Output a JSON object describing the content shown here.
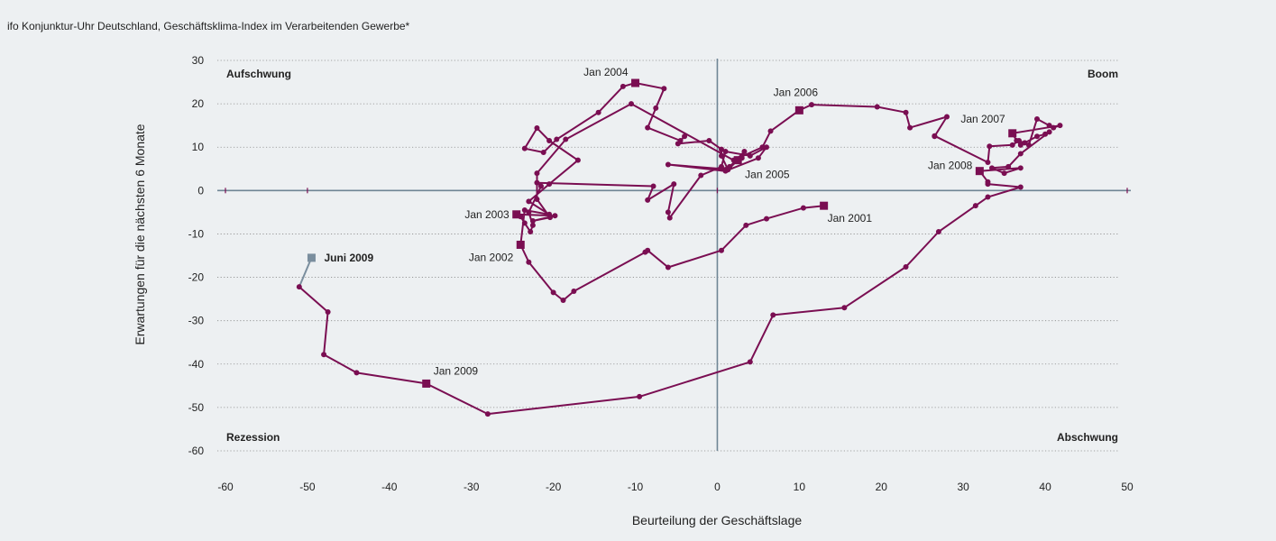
{
  "title": "ifo Konjunktur-Uhr Deutschland, Geschäftsklima-Index im Verarbeitenden Gewerbe*",
  "colors": {
    "series": "#7a0e52",
    "latest": "#7a8e9e",
    "axis": "#6f8595",
    "grid": "#8a8a8a"
  },
  "chart_data": {
    "type": "scatter",
    "title": "ifo Konjunktur-Uhr Deutschland, Geschäftsklima-Index im Verarbeitenden Gewerbe*",
    "xlabel": "Beurteilung der Geschäftslage",
    "ylabel": "Erwartungen für die nächsten 6 Monate",
    "xlim": [
      -60,
      50
    ],
    "ylim": [
      -60,
      30
    ],
    "xticks": [
      "-60",
      "-50",
      "-40",
      "-30",
      "-20",
      "-10",
      "0",
      "10",
      "20",
      "30",
      "40",
      "50"
    ],
    "yticks": [
      "30",
      "20",
      "10",
      "0",
      "-10",
      "-20",
      "-30",
      "-40",
      "-50",
      "-60"
    ],
    "grid": "horizontal dotted",
    "quadrants": {
      "top_left": "Aufschwung",
      "top_right": "Boom",
      "bottom_left": "Rezession",
      "bottom_right": "Abschwung"
    },
    "series": [
      {
        "points": [
          [
            13,
            -3.5
          ],
          [
            10.5,
            -4
          ],
          [
            6,
            -6.5
          ],
          [
            3.5,
            -8
          ],
          [
            0.5,
            -13.8
          ],
          [
            -6,
            -17.7
          ],
          [
            -8.5,
            -13.8
          ],
          [
            -8.8,
            -14.2
          ],
          [
            -17.5,
            -23.2
          ],
          [
            -18.8,
            -25.3
          ],
          [
            -20,
            -23.5
          ],
          [
            -23,
            -16.5
          ],
          [
            -24,
            -12.5
          ],
          [
            -23.5,
            -4.5
          ],
          [
            -20.5,
            -5.5
          ],
          [
            -23,
            -2.5
          ],
          [
            -20.5,
            1.5
          ],
          [
            -17,
            7
          ],
          [
            -20.5,
            11.5
          ],
          [
            -22,
            14.4
          ],
          [
            -23.5,
            9.7
          ],
          [
            -21.2,
            8.8
          ],
          [
            -19.6,
            11.8
          ],
          [
            -14.5,
            18
          ],
          [
            -11.5,
            24
          ],
          [
            -10,
            24.8
          ],
          [
            -6.5,
            23.5
          ],
          [
            -7.5,
            19
          ],
          [
            -8.5,
            14.5
          ],
          [
            -4.5,
            11.5
          ],
          [
            -4,
            12.5
          ],
          [
            -4.8,
            10.8
          ],
          [
            -1,
            11.5
          ],
          [
            0.5,
            9.5
          ],
          [
            0.5,
            8
          ],
          [
            1.3,
            4.8
          ],
          [
            2.5,
            7
          ],
          [
            3,
            7.5
          ],
          [
            3.3,
            9
          ],
          [
            1.5,
            5.5
          ],
          [
            0.5,
            5
          ],
          [
            -6,
            6
          ],
          [
            1,
            4.5
          ],
          [
            5,
            7.5
          ],
          [
            6,
            10
          ],
          [
            4,
            8
          ],
          [
            1,
            9
          ],
          [
            0.5,
            5.5
          ],
          [
            -2,
            3.5
          ],
          [
            -5.8,
            -6.3
          ],
          [
            -6,
            -5
          ],
          [
            -5.3,
            1.5
          ],
          [
            -8.5,
            -2.2
          ],
          [
            -7.8,
            1
          ],
          [
            -22,
            1.8
          ],
          [
            -21.5,
            1
          ],
          [
            -23,
            -5
          ],
          [
            -22.5,
            -8
          ],
          [
            -22.8,
            -9.5
          ],
          [
            -23.5,
            -7.5
          ],
          [
            -24,
            -6
          ],
          [
            -24.5,
            -5.5
          ],
          [
            -19.8,
            -5.8
          ],
          [
            -22.5,
            -7
          ],
          [
            -20.4,
            -6.2
          ],
          [
            -22,
            -2
          ],
          [
            -22,
            4
          ],
          [
            -18.5,
            11.8
          ],
          [
            -10.5,
            20
          ],
          [
            2,
            7
          ],
          [
            5.5,
            10
          ],
          [
            6.5,
            13.7
          ],
          [
            10,
            18.5
          ],
          [
            11.5,
            19.8
          ],
          [
            19.5,
            19.3
          ],
          [
            23,
            18
          ],
          [
            23.5,
            14.5
          ],
          [
            28,
            17
          ],
          [
            26.5,
            12.5
          ],
          [
            26.5,
            12.6
          ],
          [
            33,
            6.5
          ],
          [
            33.2,
            10.2
          ],
          [
            36,
            10.5
          ],
          [
            36.8,
            11.5
          ],
          [
            38,
            10.5
          ],
          [
            39,
            16.5
          ],
          [
            40.5,
            15
          ],
          [
            41,
            14.5
          ],
          [
            41.8,
            15
          ],
          [
            36,
            13.2
          ],
          [
            36.5,
            11.5
          ],
          [
            37,
            10.5
          ],
          [
            37.5,
            11
          ],
          [
            39,
            12.5
          ],
          [
            40,
            13
          ],
          [
            40.5,
            13.5
          ],
          [
            37,
            8.5
          ],
          [
            35.5,
            5.5
          ],
          [
            33.5,
            5.2
          ],
          [
            35,
            4
          ],
          [
            37,
            5.2
          ],
          [
            32,
            4.5
          ],
          [
            33,
            2
          ],
          [
            33,
            1.5
          ],
          [
            37,
            0.8
          ],
          [
            33,
            -1.5
          ],
          [
            31.5,
            -3.5
          ],
          [
            27,
            -9.5
          ],
          [
            23,
            -17.6
          ],
          [
            15.5,
            -27
          ],
          [
            6.8,
            -28.7
          ],
          [
            4,
            -39.5
          ],
          [
            -9.5,
            -47.5
          ],
          [
            -28,
            -51.5
          ],
          [
            -35.5,
            -44.5
          ],
          [
            -44,
            -42
          ],
          [
            -48,
            -37.8
          ],
          [
            -47.5,
            -28
          ],
          [
            -51,
            -22.2
          ]
        ],
        "latest": [
          [
            -51,
            -22.2
          ],
          [
            -49.5,
            -15.5
          ]
        ]
      }
    ],
    "labeled_points": [
      {
        "label": "Jan 2001",
        "x": 13,
        "y": -3.5
      },
      {
        "label": "Jan 2002",
        "x": -24,
        "y": -12.5
      },
      {
        "label": "Jan 2003",
        "x": -24.5,
        "y": -5.5
      },
      {
        "label": "Jan 2004",
        "x": -10,
        "y": 24.8
      },
      {
        "label": "Jan 2005",
        "x": 2.5,
        "y": 7
      },
      {
        "label": "Jan 2006",
        "x": 10,
        "y": 18.5
      },
      {
        "label": "Jan 2007",
        "x": 36,
        "y": 13.2
      },
      {
        "label": "Jan 2008",
        "x": 32,
        "y": 4.5
      },
      {
        "label": "Jan 2009",
        "x": -35.5,
        "y": -44.5
      },
      {
        "label": "Juni 2009",
        "x": -49.5,
        "y": -15.5
      }
    ]
  }
}
